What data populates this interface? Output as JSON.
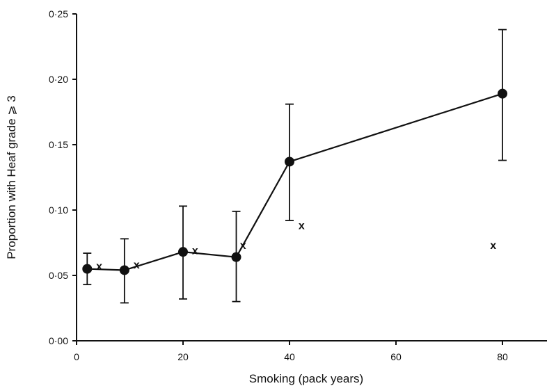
{
  "chart_data": {
    "type": "line",
    "xlabel": "Smoking (pack years)",
    "ylabel": "Proportion with Heaf grade ⩾ 3",
    "ylim": [
      0,
      0.25
    ],
    "x_tick_labels": [
      "0",
      "20",
      "40",
      "60",
      "80"
    ],
    "y_tick_labels": [
      "0·00",
      "0·05",
      "0·10",
      "0·15",
      "0·20",
      "0·25"
    ],
    "grid": false,
    "series": [
      {
        "marker": "filled-circle",
        "line": true,
        "x": [
          2,
          9,
          20,
          30,
          40,
          80
        ],
        "y": [
          0.055,
          0.054,
          0.068,
          0.064,
          0.137,
          0.189
        ],
        "err_low": [
          0.043,
          0.029,
          0.032,
          0.03,
          0.092,
          0.138
        ],
        "err_high": [
          0.067,
          0.078,
          0.103,
          0.099,
          0.181,
          0.238
        ]
      },
      {
        "marker": "x",
        "marker_text": "x",
        "line": false,
        "x": [
          4,
          11,
          22,
          31,
          42,
          78
        ],
        "y": [
          0.057,
          0.058,
          0.069,
          0.073,
          0.088,
          0.073
        ]
      }
    ]
  }
}
